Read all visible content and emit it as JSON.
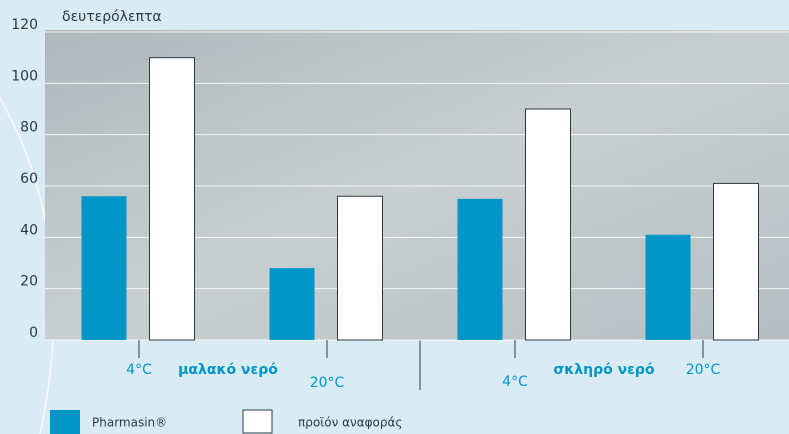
{
  "chart_data": {
    "type": "bar",
    "ylabel": "δευτερόλεπτα",
    "categories": [
      "4°C",
      "20°C",
      "4°C",
      "20°C"
    ],
    "groups": [
      "μαλακό νερό",
      "σκληρό νερό"
    ],
    "series": [
      {
        "name": "Pharmasin®",
        "color": "#0096c8",
        "values": [
          56,
          28,
          55,
          41
        ]
      },
      {
        "name": "προϊόν αναφοράς",
        "color": "#ffffff",
        "values": [
          110,
          56,
          90,
          61
        ]
      }
    ],
    "ylim": [
      0,
      120
    ],
    "yticks": [
      0,
      20,
      40,
      60,
      80,
      100,
      120
    ],
    "grid": true
  }
}
